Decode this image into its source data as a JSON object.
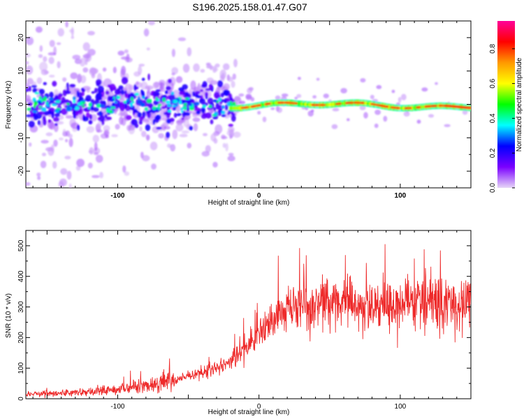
{
  "figure": {
    "title": "S196.2025.158.01.47.G07"
  },
  "chart_data": [
    {
      "type": "heatmap",
      "xlabel": "Height of straight line (km)",
      "ylabel": "Frequency (Hz)",
      "xlim": [
        -165,
        150
      ],
      "ylim": [
        -25,
        25
      ],
      "x_ticks": [
        -100,
        0,
        100
      ],
      "y_ticks": [
        -20,
        -10,
        0,
        10,
        20
      ],
      "colorbar": {
        "label": "Normalized spectral amplitude",
        "range": [
          0,
          1
        ],
        "ticks": [
          "0.0",
          "0.2",
          "0.4",
          "0.6",
          "0.8"
        ],
        "colors": [
          "#e6d6f7",
          "#7b00ff",
          "#0000ff",
          "#00ffff",
          "#00ff00",
          "#ffff00",
          "#ff9900",
          "#ff0000",
          "#ff0099"
        ]
      },
      "description_points": {
        "band_center_hz": 0,
        "band_tilt_hz_per_km": 0,
        "diffuse_region_x": [
          -165,
          -25
        ],
        "diffuse_halfwidth_hz": 6,
        "sharp_region_x": [
          -20,
          150
        ],
        "sharp_halfwidth_hz": 1.2
      }
    },
    {
      "type": "line",
      "xlabel": "Height of straight line (km)",
      "ylabel": "SNR (10 * v/v)",
      "xlim": [
        -165,
        150
      ],
      "ylim": [
        0,
        550
      ],
      "x_ticks": [
        -100,
        0,
        100
      ],
      "y_ticks": [
        0,
        100,
        200,
        300,
        400,
        500
      ],
      "series": [
        {
          "color": "#ee2a2a",
          "envelope_x": [
            -165,
            -140,
            -120,
            -100,
            -80,
            -60,
            -40,
            -20,
            -10,
            0,
            10,
            20,
            30,
            40,
            50,
            60,
            70,
            80,
            90,
            100,
            110,
            120,
            130,
            140,
            150
          ],
          "envelope_y": [
            15,
            18,
            22,
            30,
            45,
            60,
            85,
            120,
            170,
            210,
            250,
            290,
            310,
            320,
            330,
            320,
            310,
            300,
            300,
            320,
            320,
            315,
            310,
            305,
            300
          ]
        }
      ]
    }
  ]
}
